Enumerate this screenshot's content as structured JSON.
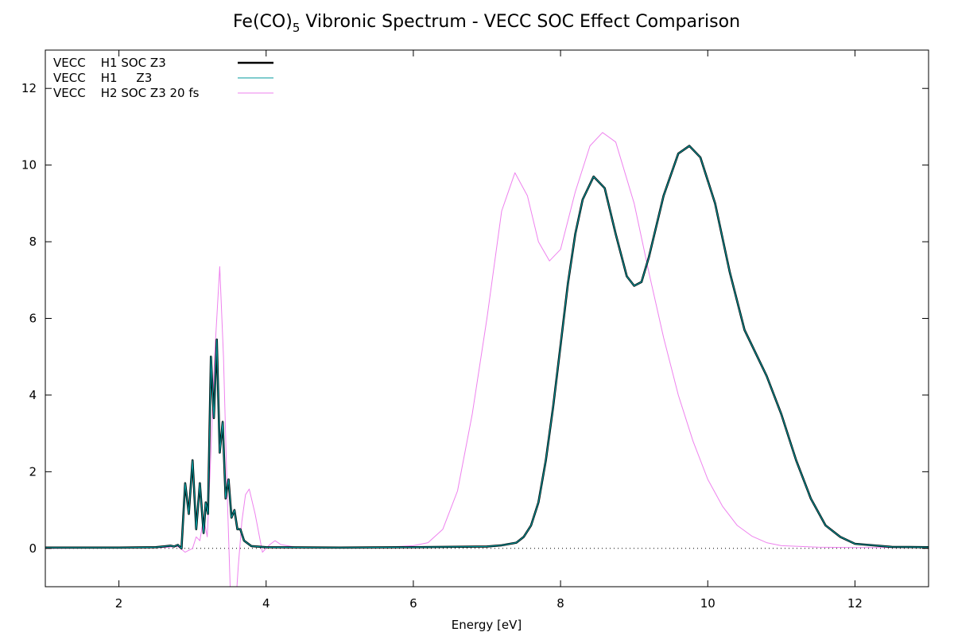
{
  "chart_data": {
    "type": "line",
    "title": "Fe(CO)5 Vibronic Spectrum - VECC SOC Effect Comparison",
    "title_parts": {
      "main": "Fe(CO)",
      "subscript": "5",
      "rest": " Vibronic Spectrum - VECC SOC Effect Comparison"
    },
    "xlabel": "Energy [eV]",
    "ylabel": "",
    "xlim": [
      1,
      13
    ],
    "ylim": [
      -1,
      13
    ],
    "xticks": [
      2,
      4,
      6,
      8,
      10,
      12
    ],
    "yticks": [
      0,
      2,
      4,
      6,
      8,
      10,
      12
    ],
    "grid": false,
    "zero_line": true,
    "legend_position": "top-left",
    "series": [
      {
        "name": "VECC    H1 SOC Z3",
        "color": "#000000",
        "points": [
          [
            1.0,
            0.02
          ],
          [
            2.0,
            0.02
          ],
          [
            2.5,
            0.03
          ],
          [
            2.6,
            0.05
          ],
          [
            2.7,
            0.07
          ],
          [
            2.75,
            0.05
          ],
          [
            2.8,
            0.09
          ],
          [
            2.85,
            0.0
          ],
          [
            2.9,
            1.7
          ],
          [
            2.95,
            0.9
          ],
          [
            3.0,
            2.3
          ],
          [
            3.05,
            0.5
          ],
          [
            3.1,
            1.7
          ],
          [
            3.15,
            0.4
          ],
          [
            3.18,
            1.2
          ],
          [
            3.21,
            0.9
          ],
          [
            3.25,
            5.0
          ],
          [
            3.29,
            3.4
          ],
          [
            3.33,
            5.45
          ],
          [
            3.37,
            2.5
          ],
          [
            3.41,
            3.3
          ],
          [
            3.45,
            1.3
          ],
          [
            3.49,
            1.8
          ],
          [
            3.53,
            0.8
          ],
          [
            3.57,
            1.0
          ],
          [
            3.61,
            0.5
          ],
          [
            3.65,
            0.5
          ],
          [
            3.7,
            0.2
          ],
          [
            3.8,
            0.06
          ],
          [
            4.0,
            0.03
          ],
          [
            5.0,
            0.02
          ],
          [
            6.0,
            0.03
          ],
          [
            7.0,
            0.05
          ],
          [
            7.2,
            0.08
          ],
          [
            7.4,
            0.15
          ],
          [
            7.5,
            0.3
          ],
          [
            7.6,
            0.6
          ],
          [
            7.7,
            1.2
          ],
          [
            7.8,
            2.3
          ],
          [
            7.9,
            3.7
          ],
          [
            8.0,
            5.3
          ],
          [
            8.1,
            6.9
          ],
          [
            8.2,
            8.2
          ],
          [
            8.3,
            9.1
          ],
          [
            8.45,
            9.7
          ],
          [
            8.6,
            9.4
          ],
          [
            8.75,
            8.2
          ],
          [
            8.9,
            7.1
          ],
          [
            9.0,
            6.85
          ],
          [
            9.1,
            6.95
          ],
          [
            9.2,
            7.6
          ],
          [
            9.4,
            9.2
          ],
          [
            9.6,
            10.3
          ],
          [
            9.75,
            10.5
          ],
          [
            9.9,
            10.2
          ],
          [
            10.1,
            9.0
          ],
          [
            10.3,
            7.2
          ],
          [
            10.5,
            5.7
          ],
          [
            10.8,
            4.5
          ],
          [
            11.0,
            3.5
          ],
          [
            11.2,
            2.3
          ],
          [
            11.4,
            1.3
          ],
          [
            11.6,
            0.6
          ],
          [
            11.8,
            0.3
          ],
          [
            12.0,
            0.12
          ],
          [
            12.5,
            0.04
          ],
          [
            13.0,
            0.03
          ]
        ]
      },
      {
        "name": "VECC    H1     Z3",
        "color": "#009a9e",
        "points": [
          [
            1.0,
            0.02
          ],
          [
            2.0,
            0.02
          ],
          [
            2.5,
            0.03
          ],
          [
            2.6,
            0.05
          ],
          [
            2.7,
            0.07
          ],
          [
            2.75,
            0.05
          ],
          [
            2.8,
            0.09
          ],
          [
            2.85,
            0.0
          ],
          [
            2.9,
            1.7
          ],
          [
            2.95,
            0.9
          ],
          [
            3.0,
            2.3
          ],
          [
            3.05,
            0.5
          ],
          [
            3.1,
            1.7
          ],
          [
            3.15,
            0.4
          ],
          [
            3.18,
            1.2
          ],
          [
            3.21,
            0.9
          ],
          [
            3.25,
            5.0
          ],
          [
            3.29,
            3.4
          ],
          [
            3.33,
            5.45
          ],
          [
            3.37,
            2.5
          ],
          [
            3.41,
            3.3
          ],
          [
            3.45,
            1.3
          ],
          [
            3.49,
            1.8
          ],
          [
            3.53,
            0.8
          ],
          [
            3.57,
            1.0
          ],
          [
            3.61,
            0.5
          ],
          [
            3.65,
            0.5
          ],
          [
            3.7,
            0.2
          ],
          [
            3.8,
            0.06
          ],
          [
            4.0,
            0.03
          ],
          [
            5.0,
            0.02
          ],
          [
            6.0,
            0.03
          ],
          [
            7.0,
            0.05
          ],
          [
            7.2,
            0.08
          ],
          [
            7.4,
            0.15
          ],
          [
            7.5,
            0.3
          ],
          [
            7.6,
            0.6
          ],
          [
            7.7,
            1.2
          ],
          [
            7.8,
            2.3
          ],
          [
            7.9,
            3.7
          ],
          [
            8.0,
            5.3
          ],
          [
            8.1,
            6.9
          ],
          [
            8.2,
            8.2
          ],
          [
            8.3,
            9.1
          ],
          [
            8.45,
            9.7
          ],
          [
            8.6,
            9.4
          ],
          [
            8.75,
            8.2
          ],
          [
            8.9,
            7.1
          ],
          [
            9.0,
            6.85
          ],
          [
            9.1,
            6.95
          ],
          [
            9.2,
            7.6
          ],
          [
            9.4,
            9.2
          ],
          [
            9.6,
            10.3
          ],
          [
            9.75,
            10.5
          ],
          [
            9.9,
            10.2
          ],
          [
            10.1,
            9.0
          ],
          [
            10.3,
            7.2
          ],
          [
            10.5,
            5.7
          ],
          [
            10.8,
            4.5
          ],
          [
            11.0,
            3.5
          ],
          [
            11.2,
            2.3
          ],
          [
            11.4,
            1.3
          ],
          [
            11.6,
            0.6
          ],
          [
            11.8,
            0.3
          ],
          [
            12.0,
            0.12
          ],
          [
            12.5,
            0.04
          ],
          [
            13.0,
            0.03
          ]
        ]
      },
      {
        "name": "VECC    H2 SOC Z3 20 fs",
        "color": "#ee82ee",
        "points": [
          [
            1.0,
            0.0
          ],
          [
            2.0,
            0.01
          ],
          [
            2.6,
            0.02
          ],
          [
            2.8,
            0.05
          ],
          [
            2.9,
            -0.1
          ],
          [
            3.0,
            0.0
          ],
          [
            3.05,
            0.3
          ],
          [
            3.1,
            0.2
          ],
          [
            3.15,
            0.8
          ],
          [
            3.2,
            0.3
          ],
          [
            3.25,
            2.5
          ],
          [
            3.3,
            5.0
          ],
          [
            3.37,
            7.35
          ],
          [
            3.42,
            5.0
          ],
          [
            3.47,
            1.5
          ],
          [
            3.52,
            -1.5
          ],
          [
            3.57,
            -2.0
          ],
          [
            3.62,
            -0.5
          ],
          [
            3.67,
            0.7
          ],
          [
            3.72,
            1.4
          ],
          [
            3.77,
            1.55
          ],
          [
            3.85,
            0.9
          ],
          [
            3.95,
            -0.1
          ],
          [
            4.05,
            0.1
          ],
          [
            4.12,
            0.2
          ],
          [
            4.2,
            0.1
          ],
          [
            4.4,
            0.03
          ],
          [
            5.0,
            0.02
          ],
          [
            5.6,
            0.03
          ],
          [
            6.0,
            0.07
          ],
          [
            6.2,
            0.15
          ],
          [
            6.4,
            0.5
          ],
          [
            6.6,
            1.5
          ],
          [
            6.8,
            3.5
          ],
          [
            7.0,
            6.0
          ],
          [
            7.2,
            8.8
          ],
          [
            7.38,
            9.8
          ],
          [
            7.55,
            9.2
          ],
          [
            7.7,
            8.0
          ],
          [
            7.85,
            7.5
          ],
          [
            8.0,
            7.8
          ],
          [
            8.2,
            9.3
          ],
          [
            8.4,
            10.5
          ],
          [
            8.57,
            10.85
          ],
          [
            8.75,
            10.6
          ],
          [
            9.0,
            9.0
          ],
          [
            9.2,
            7.2
          ],
          [
            9.4,
            5.5
          ],
          [
            9.6,
            4.0
          ],
          [
            9.8,
            2.8
          ],
          [
            10.0,
            1.8
          ],
          [
            10.2,
            1.1
          ],
          [
            10.4,
            0.6
          ],
          [
            10.6,
            0.32
          ],
          [
            10.8,
            0.15
          ],
          [
            11.0,
            0.07
          ],
          [
            11.5,
            0.03
          ],
          [
            12.0,
            0.02
          ],
          [
            13.0,
            0.02
          ]
        ]
      }
    ]
  }
}
